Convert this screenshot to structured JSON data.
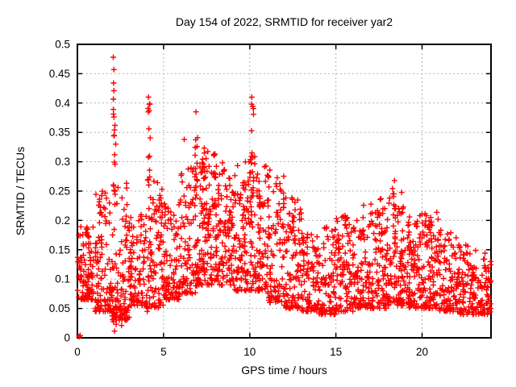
{
  "page": {
    "background": "#ffffff"
  },
  "chart_data": {
    "type": "scatter",
    "title": "Day 154 of 2022, SRMTID for receiver yar2",
    "xlabel": "GPS time / hours",
    "ylabel": "SRMTID / TECUs",
    "xlim": [
      0,
      24
    ],
    "ylim": [
      0,
      0.5
    ],
    "xticks": [
      {
        "v": 0,
        "label": "0"
      },
      {
        "v": 5,
        "label": "5"
      },
      {
        "v": 10,
        "label": "10"
      },
      {
        "v": 15,
        "label": "15"
      },
      {
        "v": 20,
        "label": "20"
      }
    ],
    "yticks": [
      {
        "v": 0,
        "label": "0"
      },
      {
        "v": 0.05,
        "label": "0.05"
      },
      {
        "v": 0.1,
        "label": "0.1"
      },
      {
        "v": 0.15,
        "label": "0.15"
      },
      {
        "v": 0.2,
        "label": "0.2"
      },
      {
        "v": 0.25,
        "label": "0.25"
      },
      {
        "v": 0.3,
        "label": "0.3"
      },
      {
        "v": 0.35,
        "label": "0.35"
      },
      {
        "v": 0.4,
        "label": "0.4"
      },
      {
        "v": 0.45,
        "label": "0.45"
      },
      {
        "v": 0.5,
        "label": "0.5"
      }
    ],
    "grid": true,
    "legend": false,
    "marker": {
      "shape": "plus",
      "color": "#ff0000",
      "size": 7,
      "stroke_width": 1.4
    },
    "axis_color": "#000000",
    "grid_color": "#b3b3b3",
    "text_color": "#000000",
    "seed": 154,
    "scatter_model": {
      "bands": [
        [
          0,
          1,
          95,
          0.065,
          0.19,
          1.6
        ],
        [
          1,
          2,
          100,
          0.045,
          0.255,
          1.8
        ],
        [
          2,
          3,
          110,
          0.03,
          0.27,
          1.9
        ],
        [
          3,
          4,
          95,
          0.055,
          0.21,
          1.7
        ],
        [
          4,
          5,
          100,
          0.05,
          0.27,
          1.8
        ],
        [
          5,
          6,
          95,
          0.065,
          0.24,
          1.7
        ],
        [
          6,
          7,
          100,
          0.075,
          0.3,
          1.7
        ],
        [
          7,
          8,
          110,
          0.09,
          0.33,
          1.5
        ],
        [
          8,
          9,
          105,
          0.09,
          0.3,
          1.6
        ],
        [
          9,
          10,
          100,
          0.08,
          0.3,
          1.7
        ],
        [
          10,
          11,
          100,
          0.08,
          0.31,
          1.7
        ],
        [
          11,
          12,
          95,
          0.06,
          0.28,
          1.8
        ],
        [
          12,
          13,
          95,
          0.05,
          0.24,
          1.9
        ],
        [
          13,
          14,
          90,
          0.045,
          0.18,
          1.7
        ],
        [
          14,
          15,
          90,
          0.04,
          0.19,
          1.7
        ],
        [
          15,
          16,
          90,
          0.045,
          0.21,
          1.7
        ],
        [
          16,
          17,
          90,
          0.05,
          0.2,
          1.7
        ],
        [
          17,
          18,
          95,
          0.05,
          0.23,
          1.7
        ],
        [
          18,
          19,
          100,
          0.055,
          0.25,
          1.7
        ],
        [
          19,
          20,
          95,
          0.05,
          0.215,
          1.7
        ],
        [
          20,
          21,
          95,
          0.05,
          0.215,
          1.7
        ],
        [
          21,
          22,
          90,
          0.045,
          0.185,
          1.7
        ],
        [
          22,
          23,
          90,
          0.04,
          0.16,
          1.6
        ],
        [
          23,
          24,
          85,
          0.04,
          0.15,
          1.5
        ]
      ],
      "columns": [
        [
          1.35,
          0.08,
          6,
          0.19,
          0.26
        ],
        [
          2.12,
          0.07,
          10,
          0.25,
          0.445
        ],
        [
          2.2,
          0.12,
          8,
          0.01,
          0.06
        ],
        [
          2.55,
          0.06,
          4,
          0.02,
          0.05
        ],
        [
          4.15,
          0.08,
          11,
          0.22,
          0.4
        ],
        [
          5.1,
          0.06,
          4,
          0.18,
          0.235
        ],
        [
          6.9,
          0.08,
          9,
          0.24,
          0.36
        ],
        [
          7.35,
          0.12,
          14,
          0.18,
          0.345
        ],
        [
          7.95,
          0.09,
          9,
          0.18,
          0.305
        ],
        [
          8.55,
          0.09,
          7,
          0.18,
          0.3
        ],
        [
          9.1,
          0.07,
          5,
          0.17,
          0.25
        ],
        [
          10.15,
          0.09,
          13,
          0.2,
          0.4
        ],
        [
          10.6,
          0.07,
          7,
          0.18,
          0.3
        ],
        [
          11.1,
          0.07,
          6,
          0.17,
          0.3
        ],
        [
          11.95,
          0.09,
          7,
          0.16,
          0.27
        ],
        [
          12.55,
          0.07,
          5,
          0.16,
          0.235
        ],
        [
          13.4,
          0.07,
          4,
          0.14,
          0.19
        ],
        [
          14.8,
          0.06,
          3,
          0.14,
          0.2
        ],
        [
          15.6,
          0.07,
          5,
          0.14,
          0.225
        ],
        [
          16.6,
          0.07,
          5,
          0.14,
          0.23
        ],
        [
          17.6,
          0.09,
          6,
          0.14,
          0.24
        ],
        [
          18.35,
          0.12,
          10,
          0.14,
          0.265
        ],
        [
          19.3,
          0.07,
          5,
          0.14,
          0.22
        ],
        [
          20.25,
          0.09,
          6,
          0.14,
          0.22
        ],
        [
          21.0,
          0.07,
          4,
          0.13,
          0.19
        ],
        [
          22.9,
          0.07,
          4,
          0.1,
          0.15
        ]
      ],
      "outliers": [
        [
          0.1,
          0.002
        ],
        [
          0.16,
          0.004
        ],
        [
          2.08,
          0.478
        ],
        [
          2.12,
          0.457
        ],
        [
          2.1,
          0.434
        ],
        [
          2.12,
          0.421
        ],
        [
          2.18,
          0.362
        ],
        [
          2.14,
          0.345
        ],
        [
          2.22,
          0.33
        ],
        [
          2.16,
          0.312
        ],
        [
          4.12,
          0.41
        ],
        [
          4.18,
          0.398
        ],
        [
          4.15,
          0.356
        ],
        [
          6.2,
          0.338
        ],
        [
          6.88,
          0.385
        ],
        [
          10.12,
          0.41
        ],
        [
          10.18,
          0.394
        ],
        [
          18.4,
          0.268
        ],
        [
          3.0,
          0.035
        ],
        [
          4.05,
          0.045
        ],
        [
          0.55,
          0.188
        ]
      ]
    }
  }
}
